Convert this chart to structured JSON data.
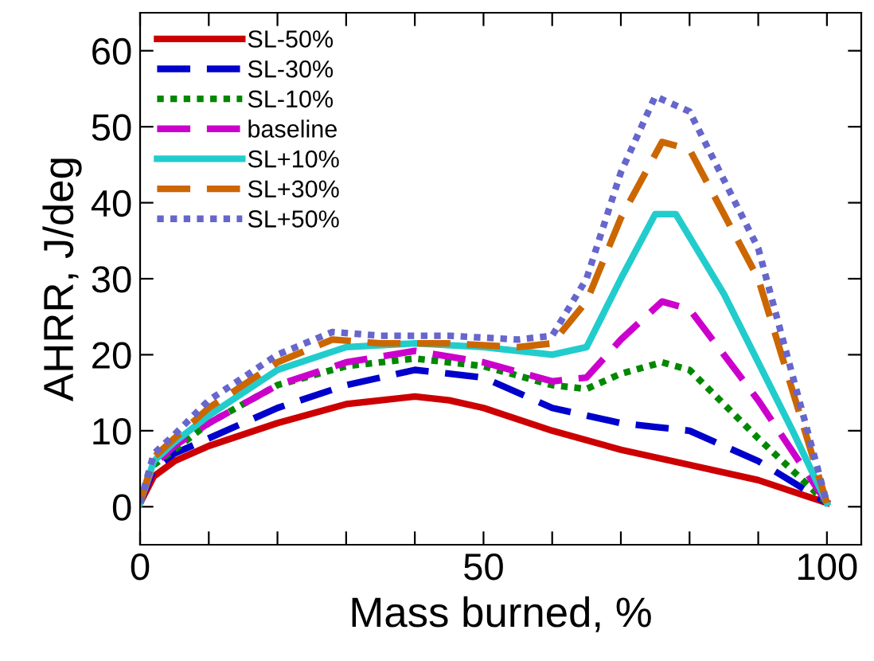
{
  "chart_data": {
    "type": "line",
    "xlabel": "Mass burned, %",
    "ylabel": "AHRR, J/deg",
    "xlim": [
      0,
      105
    ],
    "ylim": [
      -5,
      65
    ],
    "xticks": [
      0,
      {
        "value": 10,
        "label": null
      },
      {
        "value": 20,
        "label": null
      },
      {
        "value": 30,
        "label": null
      },
      {
        "value": 40,
        "label": null
      },
      50,
      {
        "value": 60,
        "label": null
      },
      {
        "value": 70,
        "label": null
      },
      {
        "value": 80,
        "label": null
      },
      {
        "value": 90,
        "label": null
      },
      100
    ],
    "yticks": [
      0,
      10,
      20,
      30,
      40,
      50,
      60
    ],
    "grid": false,
    "legend": "top left",
    "marker": "none",
    "series": [
      {
        "name": "SL-50%",
        "color": "#cc0000",
        "line_style": "solid",
        "x": [
          0,
          2,
          5,
          10,
          20,
          30,
          40,
          45,
          50,
          60,
          70,
          80,
          90,
          100
        ],
        "values": [
          0.5,
          4,
          6,
          8,
          11,
          13.5,
          14.5,
          14,
          13,
          10,
          7.5,
          5.5,
          3.5,
          0.5
        ]
      },
      {
        "name": "SL-30%",
        "color": "#0000cc",
        "line_style": "dashed",
        "x": [
          0,
          2,
          5,
          10,
          20,
          30,
          40,
          50,
          60,
          70,
          75,
          80,
          90,
          100
        ],
        "values": [
          0.5,
          5,
          7,
          9,
          13,
          16,
          18,
          17,
          13,
          11,
          10.5,
          10,
          6,
          0.5
        ]
      },
      {
        "name": "SL-10%",
        "color": "#008800",
        "line_style": "dotted",
        "x": [
          0,
          2,
          5,
          10,
          20,
          30,
          40,
          50,
          60,
          65,
          70,
          76,
          80,
          90,
          100
        ],
        "values": [
          0.5,
          5.5,
          7.5,
          11,
          16,
          18.5,
          19.5,
          18.5,
          16,
          15.5,
          17.5,
          19,
          18,
          9,
          0.5
        ]
      },
      {
        "name": "baseline",
        "color": "#cc00cc",
        "line_style": "dashed",
        "x": [
          0,
          2,
          5,
          10,
          20,
          30,
          40,
          50,
          60,
          65,
          70,
          76,
          80,
          90,
          100
        ],
        "values": [
          0.5,
          5.5,
          8,
          11,
          16,
          19,
          20.5,
          19,
          16.5,
          17,
          22,
          27,
          26,
          14,
          0.5
        ]
      },
      {
        "name": "SL+10%",
        "color": "#22cccc",
        "line_style": "solid",
        "x": [
          0,
          2,
          5,
          10,
          20,
          30,
          40,
          50,
          60,
          65,
          70,
          75,
          78,
          85,
          95,
          100
        ],
        "values": [
          0.5,
          6,
          8.5,
          12,
          18,
          21,
          21.5,
          21,
          20,
          21,
          30,
          38.5,
          38.5,
          28,
          10,
          0.5
        ]
      },
      {
        "name": "SL+30%",
        "color": "#cc6600",
        "line_style": "dashed",
        "x": [
          0,
          2,
          5,
          10,
          20,
          28,
          35,
          45,
          55,
          60,
          65,
          70,
          76,
          80,
          90,
          100
        ],
        "values": [
          0.5,
          6.5,
          9,
          13,
          19,
          22,
          21.5,
          21.5,
          21,
          21.5,
          27,
          38,
          48,
          47,
          30,
          0.5
        ]
      },
      {
        "name": "SL+50%",
        "color": "#6666cc",
        "line_style": "dotted",
        "x": [
          0,
          2,
          5,
          10,
          20,
          28,
          35,
          45,
          55,
          60,
          65,
          70,
          75,
          80,
          90,
          100
        ],
        "values": [
          0.5,
          7,
          9.5,
          14,
          20,
          23,
          22.5,
          22.5,
          22,
          22.5,
          30,
          44,
          54,
          52,
          34,
          0.5
        ]
      }
    ]
  }
}
